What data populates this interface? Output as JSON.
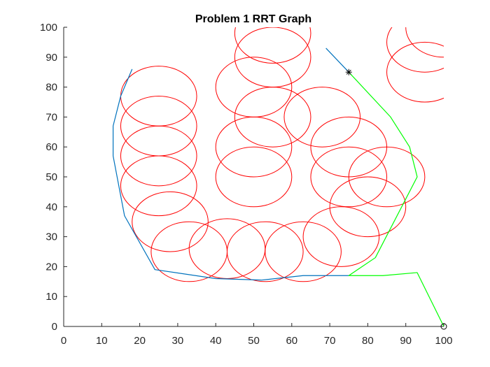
{
  "chart_data": {
    "type": "scatter",
    "title": "Problem 1 RRT Graph",
    "xlabel": "",
    "ylabel": "",
    "xlim": [
      0,
      100
    ],
    "ylim": [
      0,
      100
    ],
    "x_ticks": [
      0,
      10,
      20,
      30,
      40,
      50,
      60,
      70,
      80,
      90,
      100
    ],
    "y_ticks": [
      0,
      10,
      20,
      30,
      40,
      50,
      60,
      70,
      80,
      90,
      100
    ],
    "grid": false,
    "legend": "none",
    "obstacles": {
      "color": "#ff0000",
      "radius": 10,
      "centers": [
        [
          25,
          77
        ],
        [
          25,
          67
        ],
        [
          25,
          57
        ],
        [
          25,
          47
        ],
        [
          28,
          35
        ],
        [
          33,
          25
        ],
        [
          43,
          26
        ],
        [
          53,
          25
        ],
        [
          63,
          25
        ],
        [
          73,
          30
        ],
        [
          80,
          40
        ],
        [
          85,
          50
        ],
        [
          75,
          50
        ],
        [
          75,
          60
        ],
        [
          68,
          70
        ],
        [
          55,
          70
        ],
        [
          50,
          60
        ],
        [
          50,
          50
        ],
        [
          50,
          80
        ],
        [
          55,
          90
        ],
        [
          55,
          98
        ],
        [
          95,
          95
        ],
        [
          100,
          100
        ],
        [
          95,
          85
        ]
      ]
    },
    "series": [
      {
        "color": "#0072bd",
        "x": [
          18,
          15,
          13,
          13,
          16,
          24,
          40,
          52,
          63,
          75
        ],
        "y": [
          86,
          77,
          67,
          57,
          37,
          19,
          16,
          15.5,
          17,
          17
        ]
      },
      {
        "color": "#0072bd",
        "x": [
          69,
          75
        ],
        "y": [
          93,
          85
        ]
      },
      {
        "color": "#00ff00",
        "x": [
          100,
          93,
          84,
          75,
          82,
          93,
          91,
          86,
          75
        ],
        "y": [
          0,
          18,
          17,
          17,
          23,
          50,
          60,
          70,
          85
        ]
      }
    ],
    "markers": [
      {
        "symbol": "asterisk",
        "x": 75,
        "y": 85,
        "color": "#000000"
      },
      {
        "symbol": "circle",
        "x": 100,
        "y": 0,
        "color": "#000000"
      }
    ]
  }
}
